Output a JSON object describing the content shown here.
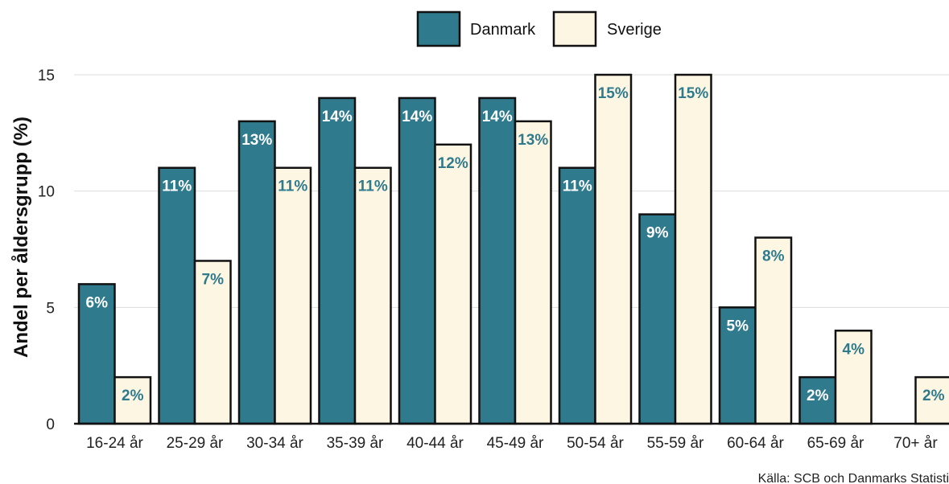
{
  "chart_data": {
    "type": "bar",
    "categories": [
      "16-24 år",
      "25-29 år",
      "30-34 år",
      "35-39 år",
      "40-44 år",
      "45-49 år",
      "50-54 år",
      "55-59 år",
      "60-64 år",
      "65-69 år",
      "70+ år"
    ],
    "series": [
      {
        "name": "Danmark",
        "color": "#2f7a8c",
        "label_color": "#ffffff",
        "values": [
          6,
          11,
          13,
          14,
          14,
          14,
          11,
          9,
          5,
          2,
          0
        ],
        "labels": [
          "6%",
          "11%",
          "13%",
          "14%",
          "14%",
          "14%",
          "11%",
          "9%",
          "5%",
          "2%",
          ""
        ]
      },
      {
        "name": "Sverige",
        "color": "#fdf6e3",
        "label_color": "#2f7a8c",
        "values": [
          2,
          7,
          11,
          11,
          12,
          13,
          15,
          15,
          8,
          4,
          2
        ],
        "labels": [
          "2%",
          "7%",
          "11%",
          "11%",
          "12%",
          "13%",
          "15%",
          "15%",
          "8%",
          "4%",
          "2%"
        ]
      }
    ],
    "ylabel": "Andel per åldersgrupp (%)",
    "ylim": [
      0,
      15
    ],
    "yticks": [
      0,
      5,
      10,
      15
    ],
    "grid": true,
    "legend_position": "top",
    "source": "Källa: SCB och Danmarks Statisti"
  }
}
